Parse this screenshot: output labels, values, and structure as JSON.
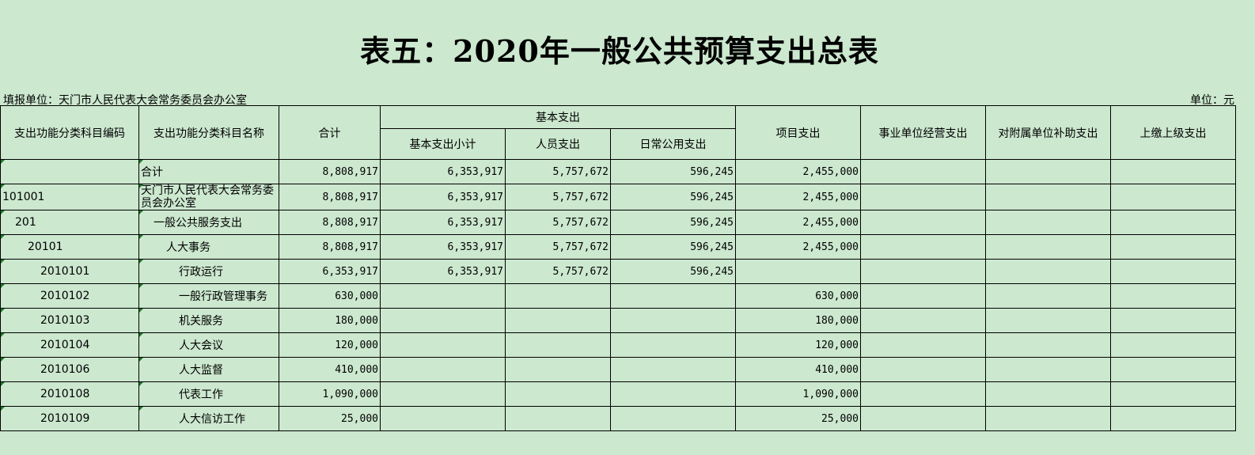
{
  "title": "表五：2020年一般公共预算支出总表",
  "reporting_unit": "填报单位：天门市人民代表大会常务委员会办公室",
  "unit": "单位：元",
  "headers": {
    "code": "支出功能分类科目编码",
    "name": "支出功能分类科目名称",
    "total": "合计",
    "basic_group": "基本支出",
    "basic_subtotal": "基本支出小计",
    "personnel": "人员支出",
    "public": "日常公用支出",
    "project": "项目支出",
    "business": "事业单位经营支出",
    "subsidy": "对附属单位补助支出",
    "remit": "上缴上级支出"
  },
  "rows": [
    {
      "code": "",
      "name": "合计",
      "total": "8,808,917",
      "basic_subtotal": "6,353,917",
      "personnel": "5,757,672",
      "public": "596,245",
      "project": "2,455,000",
      "business": "",
      "subsidy": "",
      "remit": ""
    },
    {
      "code": "101001",
      "name": "天门市人民代表大会常务委员会办公室",
      "total": "8,808,917",
      "basic_subtotal": "6,353,917",
      "personnel": "5,757,672",
      "public": "596,245",
      "project": "2,455,000",
      "business": "",
      "subsidy": "",
      "remit": ""
    },
    {
      "code": "201",
      "name": "一般公共服务支出",
      "total": "8,808,917",
      "basic_subtotal": "6,353,917",
      "personnel": "5,757,672",
      "public": "596,245",
      "project": "2,455,000",
      "business": "",
      "subsidy": "",
      "remit": ""
    },
    {
      "code": "20101",
      "name": "人大事务",
      "total": "8,808,917",
      "basic_subtotal": "6,353,917",
      "personnel": "5,757,672",
      "public": "596,245",
      "project": "2,455,000",
      "business": "",
      "subsidy": "",
      "remit": ""
    },
    {
      "code": "2010101",
      "name": "行政运行",
      "total": "6,353,917",
      "basic_subtotal": "6,353,917",
      "personnel": "5,757,672",
      "public": "596,245",
      "project": "",
      "business": "",
      "subsidy": "",
      "remit": ""
    },
    {
      "code": "2010102",
      "name": "一般行政管理事务",
      "total": "630,000",
      "basic_subtotal": "",
      "personnel": "",
      "public": "",
      "project": "630,000",
      "business": "",
      "subsidy": "",
      "remit": ""
    },
    {
      "code": "2010103",
      "name": "机关服务",
      "total": "180,000",
      "basic_subtotal": "",
      "personnel": "",
      "public": "",
      "project": "180,000",
      "business": "",
      "subsidy": "",
      "remit": ""
    },
    {
      "code": "2010104",
      "name": "人大会议",
      "total": "120,000",
      "basic_subtotal": "",
      "personnel": "",
      "public": "",
      "project": "120,000",
      "business": "",
      "subsidy": "",
      "remit": ""
    },
    {
      "code": "2010106",
      "name": "人大监督",
      "total": "410,000",
      "basic_subtotal": "",
      "personnel": "",
      "public": "",
      "project": "410,000",
      "business": "",
      "subsidy": "",
      "remit": ""
    },
    {
      "code": "2010108",
      "name": "代表工作",
      "total": "1,090,000",
      "basic_subtotal": "",
      "personnel": "",
      "public": "",
      "project": "1,090,000",
      "business": "",
      "subsidy": "",
      "remit": ""
    },
    {
      "code": "2010109",
      "name": "人大信访工作",
      "total": "25,000",
      "basic_subtotal": "",
      "personnel": "",
      "public": "",
      "project": "25,000",
      "business": "",
      "subsidy": "",
      "remit": ""
    }
  ]
}
